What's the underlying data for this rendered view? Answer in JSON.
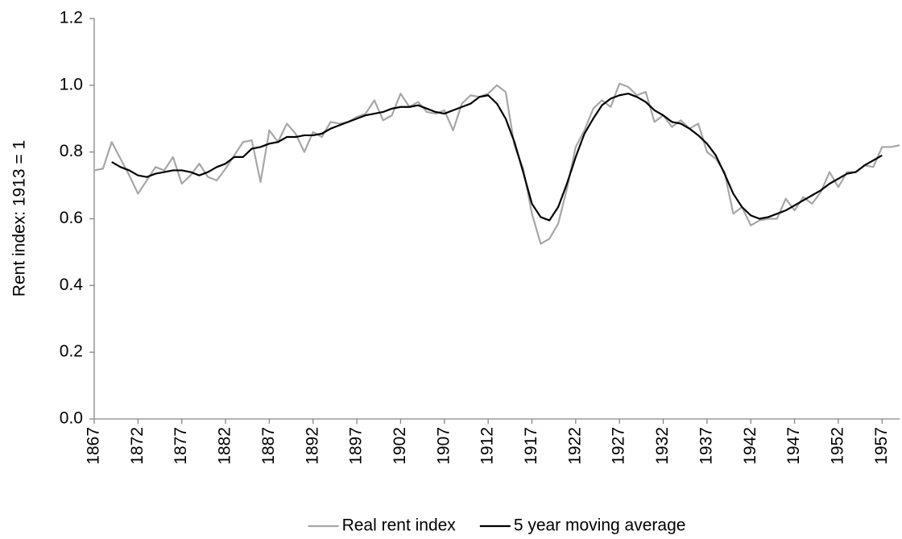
{
  "chart_data": {
    "type": "line",
    "y_label": "Rent index: 1913 = 1",
    "x": [
      1867,
      1868,
      1869,
      1870,
      1871,
      1872,
      1873,
      1874,
      1875,
      1876,
      1877,
      1878,
      1879,
      1880,
      1881,
      1882,
      1883,
      1884,
      1885,
      1886,
      1887,
      1888,
      1889,
      1890,
      1891,
      1892,
      1893,
      1894,
      1895,
      1896,
      1897,
      1898,
      1899,
      1900,
      1901,
      1902,
      1903,
      1904,
      1905,
      1906,
      1907,
      1908,
      1909,
      1910,
      1911,
      1912,
      1913,
      1914,
      1915,
      1916,
      1917,
      1918,
      1919,
      1920,
      1921,
      1922,
      1923,
      1924,
      1925,
      1926,
      1927,
      1928,
      1929,
      1930,
      1931,
      1932,
      1933,
      1934,
      1935,
      1936,
      1937,
      1938,
      1939,
      1940,
      1941,
      1942,
      1943,
      1944,
      1945,
      1946,
      1947,
      1948,
      1949,
      1950,
      1951,
      1952,
      1953,
      1954,
      1955,
      1956,
      1957,
      1958,
      1959
    ],
    "series": [
      {
        "name": "Real rent index",
        "color": "#a6a6a6",
        "values": [
          0.745,
          0.75,
          0.83,
          0.78,
          0.73,
          0.675,
          0.715,
          0.755,
          0.745,
          0.785,
          0.705,
          0.73,
          0.765,
          0.725,
          0.715,
          0.75,
          0.79,
          0.83,
          0.835,
          0.71,
          0.865,
          0.83,
          0.885,
          0.855,
          0.8,
          0.86,
          0.845,
          0.89,
          0.885,
          0.89,
          0.905,
          0.915,
          0.955,
          0.895,
          0.91,
          0.975,
          0.935,
          0.95,
          0.92,
          0.915,
          0.925,
          0.865,
          0.945,
          0.97,
          0.965,
          0.975,
          1.0,
          0.98,
          0.82,
          0.75,
          0.615,
          0.525,
          0.54,
          0.585,
          0.69,
          0.815,
          0.865,
          0.93,
          0.955,
          0.935,
          1.005,
          0.995,
          0.97,
          0.98,
          0.89,
          0.91,
          0.875,
          0.895,
          0.87,
          0.885,
          0.8,
          0.78,
          0.74,
          0.615,
          0.635,
          0.58,
          0.595,
          0.6,
          0.6,
          0.66,
          0.625,
          0.665,
          0.645,
          0.68,
          0.74,
          0.695,
          0.74,
          0.74,
          0.76,
          0.755,
          0.815,
          0.815,
          0.82
        ]
      },
      {
        "name": "5 year moving average",
        "color": "#000000",
        "values": [
          null,
          null,
          0.77,
          0.755,
          0.745,
          0.73,
          0.725,
          0.735,
          0.74,
          0.745,
          0.745,
          0.74,
          0.73,
          0.74,
          0.755,
          0.765,
          0.785,
          0.785,
          0.81,
          0.815,
          0.825,
          0.83,
          0.845,
          0.845,
          0.85,
          0.85,
          0.855,
          0.87,
          0.88,
          0.89,
          0.9,
          0.91,
          0.915,
          0.92,
          0.93,
          0.935,
          0.935,
          0.94,
          0.93,
          0.92,
          0.915,
          0.925,
          0.935,
          0.945,
          0.965,
          0.97,
          0.945,
          0.9,
          0.83,
          0.74,
          0.645,
          0.605,
          0.595,
          0.635,
          0.705,
          0.785,
          0.855,
          0.9,
          0.94,
          0.96,
          0.97,
          0.975,
          0.965,
          0.95,
          0.925,
          0.91,
          0.89,
          0.885,
          0.87,
          0.85,
          0.825,
          0.79,
          0.735,
          0.675,
          0.635,
          0.61,
          0.6,
          0.605,
          0.615,
          0.625,
          0.64,
          0.655,
          0.67,
          0.685,
          0.705,
          0.72,
          0.735,
          0.74,
          0.76,
          0.775,
          0.79,
          null,
          null
        ]
      }
    ],
    "xlim": [
      1867,
      1959
    ],
    "xticks": [
      1867,
      1872,
      1877,
      1882,
      1887,
      1892,
      1897,
      1902,
      1907,
      1912,
      1917,
      1922,
      1927,
      1932,
      1937,
      1942,
      1947,
      1952,
      1957
    ],
    "ylim": [
      0,
      1.2
    ],
    "yticks": [
      {
        "value": 0,
        "label": "0.0"
      },
      {
        "value": 0.2,
        "label": "0.2"
      },
      {
        "value": 0.4,
        "label": "0.4"
      },
      {
        "value": 0.6,
        "label": "0.6"
      },
      {
        "value": 0.8,
        "label": "0.8"
      },
      {
        "value": 1,
        "label": "1.0"
      },
      {
        "value": 1.2,
        "label": "1.2"
      }
    ],
    "grid": false,
    "legend": "bottom"
  }
}
